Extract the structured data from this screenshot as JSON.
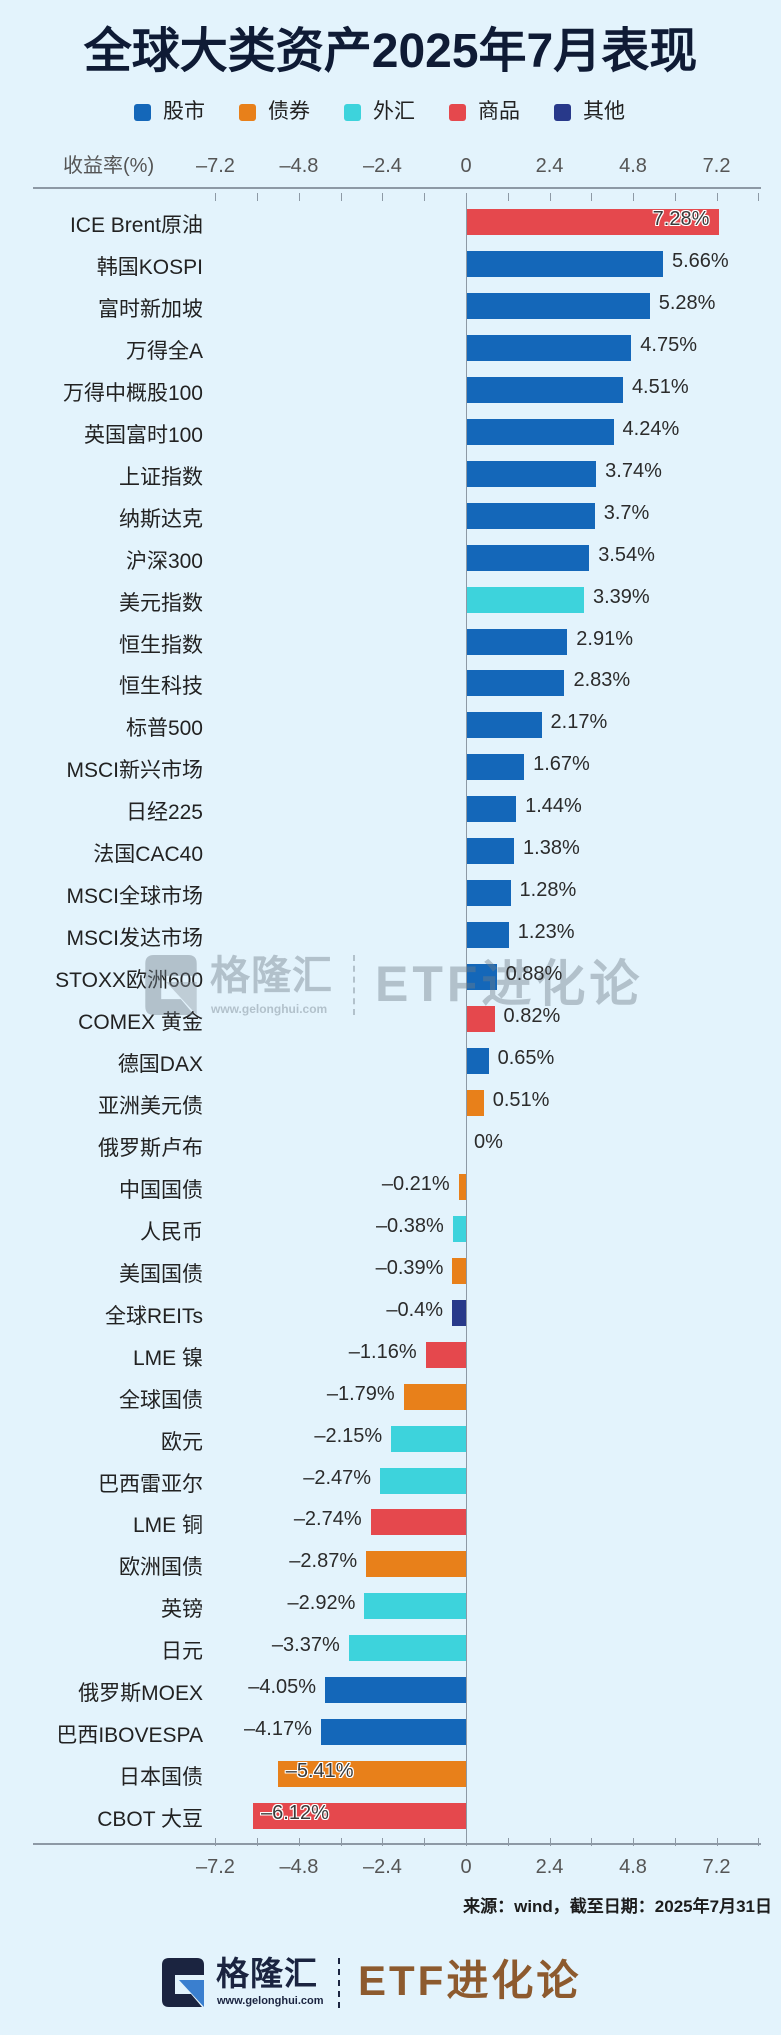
{
  "title": "全球大类资产2025年7月表现",
  "legend": {
    "items": [
      {
        "key": "stock",
        "label": "股市",
        "color": "#1467b9"
      },
      {
        "key": "bond",
        "label": "债券",
        "color": "#e8801a"
      },
      {
        "key": "fx",
        "label": "外汇",
        "color": "#3dd3dc"
      },
      {
        "key": "commodity",
        "label": "商品",
        "color": "#e5484d"
      },
      {
        "key": "other",
        "label": "其他",
        "color": "#28398a"
      }
    ]
  },
  "axis": {
    "title": "收益率(%)",
    "tick_labels": [
      "–7.2",
      "–4.8",
      "–2.4",
      "0",
      "2.4",
      "4.8",
      "7.2"
    ]
  },
  "watermark": {
    "brand": "格隆汇",
    "url": "www.gelonghui.com",
    "channel": "ETF进化论"
  },
  "source": "来源：wind，截至日期：2025年7月31日",
  "footer": {
    "brand": "格隆汇",
    "url": "www.gelonghui.com",
    "channel": "ETF进化论",
    "brand_color": "#1b2440",
    "channel_color": "#8d5a2e"
  },
  "chart_data": {
    "type": "bar",
    "orientation": "horizontal",
    "title": "全球大类资产2025年7月表现",
    "xlabel": "收益率(%)",
    "ylabel": "",
    "xlim": [
      -7.2,
      7.2
    ],
    "xticks": [
      -7.2,
      -4.8,
      -2.4,
      0,
      2.4,
      4.8,
      7.2
    ],
    "grid": false,
    "legend_position": "top",
    "legend": [
      "股市",
      "债券",
      "外汇",
      "商品",
      "其他"
    ],
    "categories": [
      "ICE Brent原油",
      "韩国KOSPI",
      "富时新加坡",
      "万得全A",
      "万得中概股100",
      "英国富时100",
      "上证指数",
      "纳斯达克",
      "沪深300",
      "美元指数",
      "恒生指数",
      "恒生科技",
      "标普500",
      "MSCI新兴市场",
      "日经225",
      "法国CAC40",
      "MSCI全球市场",
      "MSCI发达市场",
      "STOXX欧洲600",
      "COMEX 黄金",
      "德国DAX",
      "亚洲美元债",
      "俄罗斯卢布",
      "中国国债",
      "人民币",
      "美国国债",
      "全球REITs",
      "LME 镍",
      "全球国债",
      "欧元",
      "巴西雷亚尔",
      "LME 铜",
      "欧洲国债",
      "英镑",
      "日元",
      "俄罗斯MOEX",
      "巴西IBOVESPA",
      "日本国债",
      "CBOT 大豆"
    ],
    "values": [
      7.28,
      5.66,
      5.28,
      4.75,
      4.51,
      4.24,
      3.74,
      3.7,
      3.54,
      3.39,
      2.91,
      2.83,
      2.17,
      1.67,
      1.44,
      1.38,
      1.28,
      1.23,
      0.88,
      0.82,
      0.65,
      0.51,
      0,
      -0.21,
      -0.38,
      -0.39,
      -0.4,
      -1.16,
      -1.79,
      -2.15,
      -2.47,
      -2.74,
      -2.87,
      -2.92,
      -3.37,
      -4.05,
      -4.17,
      -5.41,
      -6.12
    ],
    "rows": [
      {
        "name": "ICE Brent原油",
        "value": 7.28,
        "label": "7.28%",
        "class": "commodity",
        "inside": true
      },
      {
        "name": "韩国KOSPI",
        "value": 5.66,
        "label": "5.66%",
        "class": "stock"
      },
      {
        "name": "富时新加坡",
        "value": 5.28,
        "label": "5.28%",
        "class": "stock"
      },
      {
        "name": "万得全A",
        "value": 4.75,
        "label": "4.75%",
        "class": "stock"
      },
      {
        "name": "万得中概股100",
        "value": 4.51,
        "label": "4.51%",
        "class": "stock"
      },
      {
        "name": "英国富时100",
        "value": 4.24,
        "label": "4.24%",
        "class": "stock"
      },
      {
        "name": "上证指数",
        "value": 3.74,
        "label": "3.74%",
        "class": "stock"
      },
      {
        "name": "纳斯达克",
        "value": 3.7,
        "label": "3.7%",
        "class": "stock"
      },
      {
        "name": "沪深300",
        "value": 3.54,
        "label": "3.54%",
        "class": "stock"
      },
      {
        "name": "美元指数",
        "value": 3.39,
        "label": "3.39%",
        "class": "fx"
      },
      {
        "name": "恒生指数",
        "value": 2.91,
        "label": "2.91%",
        "class": "stock"
      },
      {
        "name": "恒生科技",
        "value": 2.83,
        "label": "2.83%",
        "class": "stock"
      },
      {
        "name": "标普500",
        "value": 2.17,
        "label": "2.17%",
        "class": "stock"
      },
      {
        "name": "MSCI新兴市场",
        "value": 1.67,
        "label": "1.67%",
        "class": "stock"
      },
      {
        "name": "日经225",
        "value": 1.44,
        "label": "1.44%",
        "class": "stock"
      },
      {
        "name": "法国CAC40",
        "value": 1.38,
        "label": "1.38%",
        "class": "stock"
      },
      {
        "name": "MSCI全球市场",
        "value": 1.28,
        "label": "1.28%",
        "class": "stock"
      },
      {
        "name": "MSCI发达市场",
        "value": 1.23,
        "label": "1.23%",
        "class": "stock"
      },
      {
        "name": "STOXX欧洲600",
        "value": 0.88,
        "label": "0.88%",
        "class": "stock"
      },
      {
        "name": "COMEX 黄金",
        "value": 0.82,
        "label": "0.82%",
        "class": "commodity"
      },
      {
        "name": "德国DAX",
        "value": 0.65,
        "label": "0.65%",
        "class": "stock"
      },
      {
        "name": "亚洲美元债",
        "value": 0.51,
        "label": "0.51%",
        "class": "bond"
      },
      {
        "name": "俄罗斯卢布",
        "value": 0,
        "label": "0%",
        "class": "fx"
      },
      {
        "name": "中国国债",
        "value": -0.21,
        "label": "–0.21%",
        "class": "bond"
      },
      {
        "name": "人民币",
        "value": -0.38,
        "label": "–0.38%",
        "class": "fx"
      },
      {
        "name": "美国国债",
        "value": -0.39,
        "label": "–0.39%",
        "class": "bond"
      },
      {
        "name": "全球REITs",
        "value": -0.4,
        "label": "–0.4%",
        "class": "other"
      },
      {
        "name": "LME 镍",
        "value": -1.16,
        "label": "–1.16%",
        "class": "commodity"
      },
      {
        "name": "全球国债",
        "value": -1.79,
        "label": "–1.79%",
        "class": "bond"
      },
      {
        "name": "欧元",
        "value": -2.15,
        "label": "–2.15%",
        "class": "fx"
      },
      {
        "name": "巴西雷亚尔",
        "value": -2.47,
        "label": "–2.47%",
        "class": "fx"
      },
      {
        "name": "LME 铜",
        "value": -2.74,
        "label": "–2.74%",
        "class": "commodity"
      },
      {
        "name": "欧洲国债",
        "value": -2.87,
        "label": "–2.87%",
        "class": "bond"
      },
      {
        "name": "英镑",
        "value": -2.92,
        "label": "–2.92%",
        "class": "fx"
      },
      {
        "name": "日元",
        "value": -3.37,
        "label": "–3.37%",
        "class": "fx"
      },
      {
        "name": "俄罗斯MOEX",
        "value": -4.05,
        "label": "–4.05%",
        "class": "stock"
      },
      {
        "name": "巴西IBOVESPA",
        "value": -4.17,
        "label": "–4.17%",
        "class": "stock"
      },
      {
        "name": "日本国债",
        "value": -5.41,
        "label": "–5.41%",
        "class": "bond",
        "inside": true
      },
      {
        "name": "CBOT 大豆",
        "value": -6.12,
        "label": "–6.12%",
        "class": "commodity",
        "inside": true
      }
    ]
  }
}
